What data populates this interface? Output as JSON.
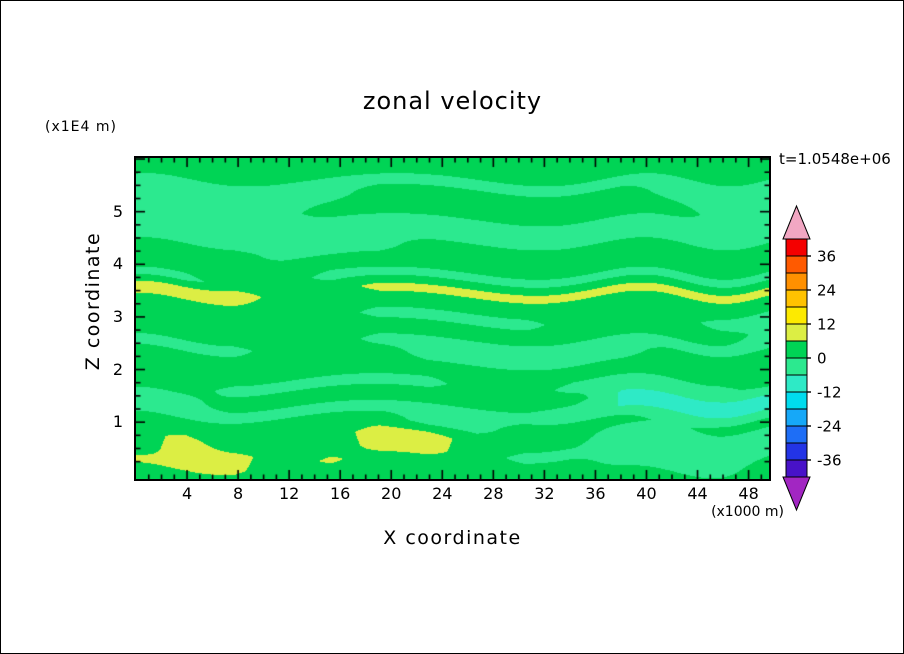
{
  "chart_data": {
    "type": "heatmap",
    "title": "zonal velocity",
    "time_annotation": "t=1.0548e+06",
    "xlabel": "X coordinate",
    "ylabel": "Z coordinate",
    "x_unit": "(x1000 m)",
    "y_unit": "(x1E4 m)",
    "x_ticks": [
      4,
      8,
      12,
      16,
      20,
      24,
      28,
      32,
      36,
      40,
      44,
      48
    ],
    "y_ticks": [
      1,
      2,
      3,
      4,
      5
    ],
    "x_range": [
      0,
      49.6
    ],
    "y_range": [
      -0.08,
      6.02
    ],
    "levels": [
      -42,
      -36,
      -30,
      -24,
      -18,
      -12,
      -6,
      0,
      6,
      12,
      18,
      24,
      30,
      36,
      42
    ],
    "colors": [
      "#a226c2",
      "#4812c8",
      "#2334e6",
      "#1e6ef6",
      "#16a8f8",
      "#00dcee",
      "#2eeac6",
      "#2ce98f",
      "#00d455",
      "#dcee44",
      "#fdea00",
      "#ffc200",
      "#ff9000",
      "#ff5a00",
      "#f40000",
      "#f2a7c3"
    ],
    "colorbar": {
      "labels": [
        36,
        24,
        12,
        0,
        -12,
        -24,
        -36
      ],
      "under_color": "#a226c2",
      "over_color": "#f2a7c3"
    },
    "grid": {
      "x_min": 0,
      "x_max": 50,
      "z_top": 6,
      "z_bottom": 0,
      "values": [
        [
          3,
          3,
          3,
          3,
          3,
          3,
          3,
          3,
          3,
          3,
          3,
          3,
          3,
          3
        ],
        [
          3,
          3,
          3,
          3,
          3,
          3,
          3,
          3,
          3,
          3,
          3,
          3,
          3,
          3
        ],
        [
          -2,
          -2,
          -2,
          -2,
          -2,
          -2,
          -2,
          -2,
          -2,
          -2,
          -2,
          -2,
          -2,
          -2
        ],
        [
          -2,
          -2,
          -2,
          -2,
          -2,
          3,
          3,
          3,
          3,
          3,
          3,
          -2,
          -2,
          -2
        ],
        [
          -2,
          -2,
          -2,
          -2,
          3,
          3,
          3,
          3,
          3,
          3,
          3,
          3,
          -2,
          -2
        ],
        [
          -2,
          -2,
          -2,
          -2,
          -2,
          -2,
          -2,
          -2,
          -2,
          -2,
          -2,
          -2,
          -2,
          -2
        ],
        [
          -2,
          -2,
          -2,
          -2,
          -2,
          -2,
          -2,
          -2,
          -2,
          -2,
          -2,
          -2,
          -2,
          -2
        ],
        [
          3,
          3,
          3,
          -2,
          -2,
          -2,
          3,
          3,
          3,
          3,
          3,
          3,
          3,
          3
        ],
        [
          3,
          3,
          3,
          3,
          3,
          3,
          3,
          3,
          3,
          3,
          3,
          3,
          3,
          3
        ],
        [
          -2,
          -2,
          3,
          3,
          -2,
          -2,
          -2,
          -2,
          -2,
          -2,
          -2,
          -2,
          -2,
          -2
        ],
        [
          10,
          10,
          10,
          3,
          3,
          8,
          8,
          8,
          8,
          8,
          8,
          8,
          8,
          8
        ],
        [
          3,
          3,
          3,
          3,
          3,
          3,
          3,
          3,
          3,
          3,
          3,
          3,
          3,
          3
        ],
        [
          3,
          3,
          3,
          3,
          3,
          -2,
          -2,
          -2,
          -2,
          3,
          3,
          3,
          -2,
          -2
        ],
        [
          3,
          3,
          3,
          3,
          3,
          3,
          3,
          3,
          3,
          3,
          3,
          3,
          3,
          -2
        ],
        [
          -2,
          -2,
          -2,
          3,
          3,
          -2,
          -2,
          -2,
          -2,
          -2,
          -2,
          -2,
          -2,
          -2
        ],
        [
          3,
          3,
          3,
          3,
          3,
          3,
          -2,
          -2,
          -2,
          -2,
          -2,
          3,
          3,
          3
        ],
        [
          3,
          3,
          3,
          3,
          3,
          3,
          3,
          3,
          3,
          3,
          3,
          3,
          3,
          3
        ],
        [
          3,
          3,
          -2,
          -2,
          -2,
          -2,
          -2,
          3,
          3,
          -2,
          -2,
          -2,
          -2,
          3
        ],
        [
          -2,
          -2,
          3,
          3,
          3,
          3,
          3,
          3,
          3,
          3,
          -7,
          -7,
          -7,
          -7
        ],
        [
          -2,
          -2,
          -2,
          -2,
          -2,
          -2,
          -2,
          -2,
          -2,
          -6,
          -6,
          -6,
          -6,
          -6
        ],
        [
          3,
          3,
          3,
          3,
          3,
          3,
          -2,
          -2,
          3,
          3,
          3,
          -2,
          3,
          3
        ],
        [
          3,
          8,
          3,
          3,
          3,
          9,
          9,
          3,
          3,
          3,
          -5,
          -5,
          -5,
          -5
        ],
        [
          3,
          9,
          8,
          3,
          3,
          8,
          8,
          3,
          -2,
          -2,
          -4,
          -4,
          -4,
          -4
        ],
        [
          7,
          7,
          7,
          3,
          7,
          3,
          3,
          3,
          3,
          3,
          -3,
          -3,
          -3,
          3
        ],
        [
          3,
          3,
          3,
          3,
          3,
          3,
          3,
          3,
          3,
          3,
          3,
          3,
          3,
          3
        ]
      ]
    }
  }
}
